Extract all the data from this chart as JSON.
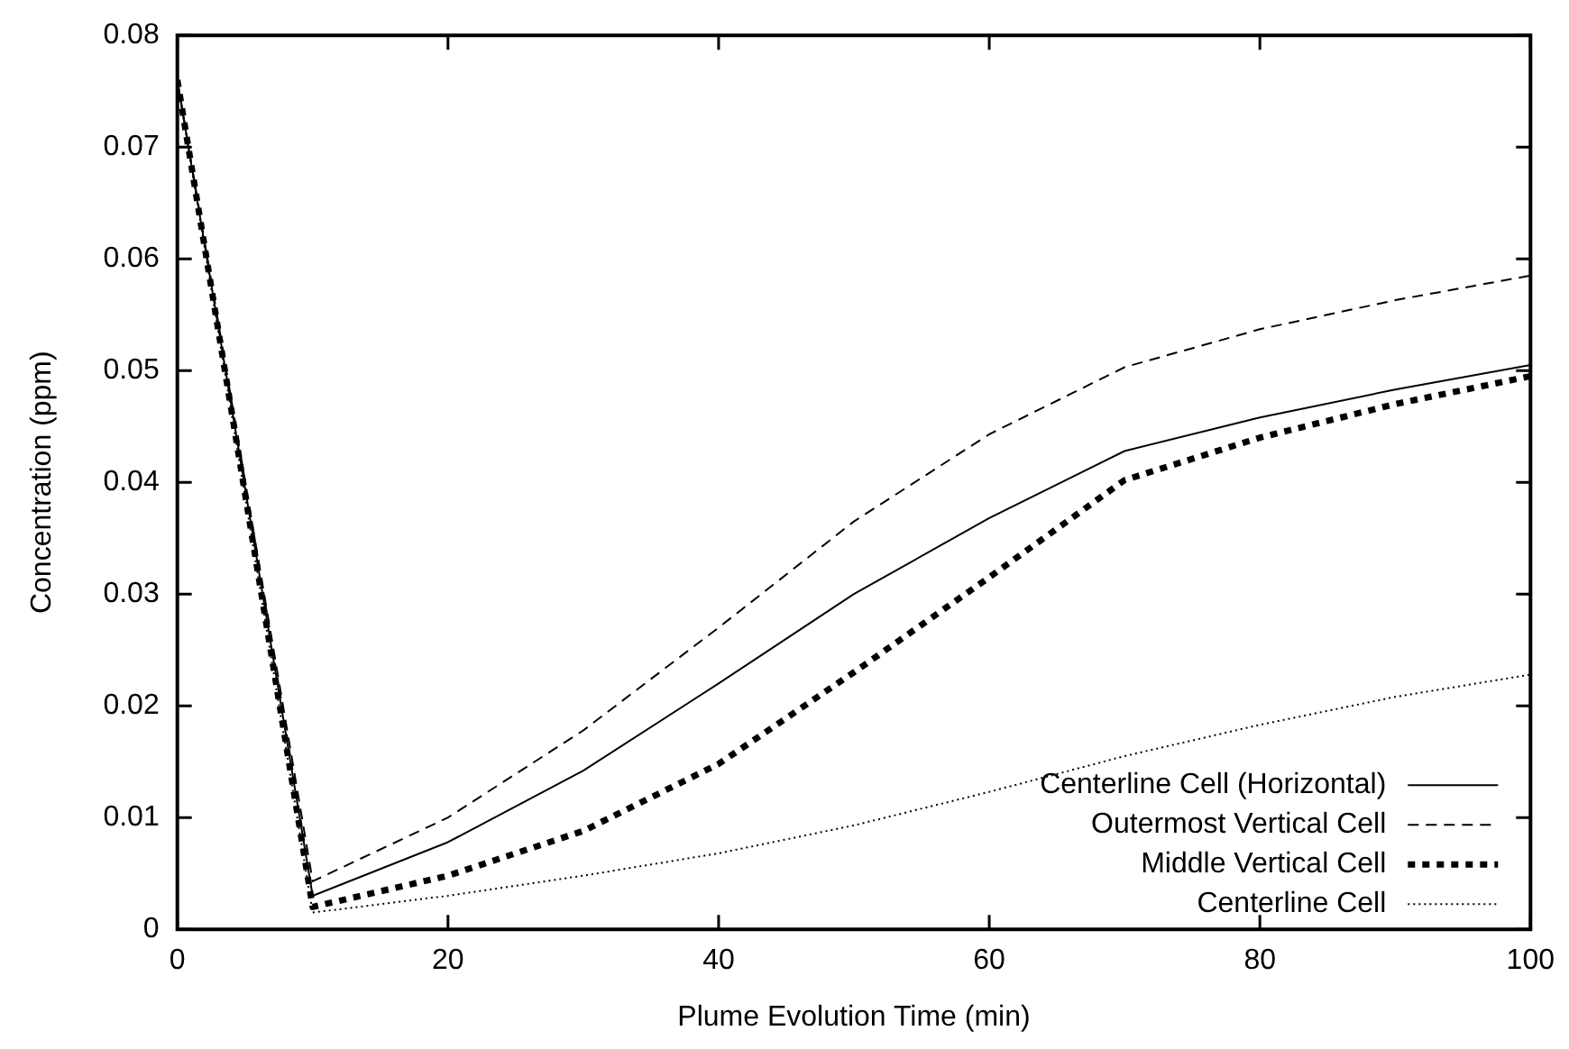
{
  "chart_data": {
    "type": "line",
    "xlabel": "Plume Evolution Time (min)",
    "ylabel": "Concentration (ppm)",
    "x": [
      0,
      10,
      20,
      30,
      40,
      50,
      60,
      70,
      80,
      90,
      100
    ],
    "xlim": [
      0,
      100
    ],
    "xticks": [
      0,
      20,
      40,
      60,
      80,
      100
    ],
    "ylim": [
      0,
      0.08
    ],
    "yticks": [
      0,
      0.01,
      0.02,
      0.03,
      0.04,
      0.05,
      0.06,
      0.07,
      0.08
    ],
    "legend": "bottom right",
    "marker": "none",
    "series": [
      {
        "name": "Centerline Cell (Horizontal)",
        "color": "#000000",
        "line_style": "solid",
        "values": [
          0.076,
          0.003,
          0.0078,
          0.0142,
          0.022,
          0.03,
          0.0368,
          0.0428,
          0.0458,
          0.0483,
          0.0505
        ]
      },
      {
        "name": "Outermost Vertical Cell",
        "color": "#000000",
        "line_style": "dashed",
        "values": [
          0.076,
          0.0043,
          0.01,
          0.0178,
          0.027,
          0.0365,
          0.0443,
          0.0503,
          0.0537,
          0.0563,
          0.0585
        ]
      },
      {
        "name": "Middle Vertical Cell",
        "color": "#000000",
        "line_style": "dashed",
        "values": [
          0.076,
          0.002,
          0.0048,
          0.0088,
          0.0148,
          0.023,
          0.0315,
          0.0402,
          0.044,
          0.047,
          0.0495
        ]
      },
      {
        "name": "Centerline Cell",
        "color": "#000000",
        "line_style": "dotted",
        "values": [
          0.076,
          0.0015,
          0.003,
          0.0048,
          0.0068,
          0.0093,
          0.0123,
          0.0155,
          0.0183,
          0.0208,
          0.0228
        ]
      }
    ]
  }
}
